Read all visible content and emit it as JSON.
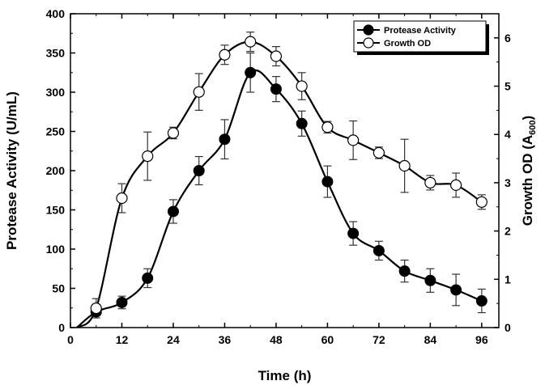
{
  "chart_data": {
    "type": "line",
    "xlabel": "Time (h)",
    "ylabel_left": "Protease Activity (U/mL)",
    "ylabel_right_main": "Growth OD (A",
    "ylabel_right_sub": "600",
    "ylabel_right_close": ")",
    "xlim": [
      0,
      100
    ],
    "xticks": [
      0,
      12,
      24,
      36,
      48,
      60,
      72,
      84,
      96
    ],
    "ylim_left": [
      0,
      400
    ],
    "yticks_left": [
      0,
      50,
      100,
      150,
      200,
      250,
      300,
      350,
      400
    ],
    "ylim_right": [
      0,
      6.5
    ],
    "yticks_right": [
      0,
      1,
      2,
      3,
      4,
      5,
      6
    ],
    "grid": false,
    "legend_position": "top-right",
    "series": [
      {
        "name": "Protease Activity",
        "axis": "left",
        "marker": "filled-circle",
        "x": [
          6,
          12,
          18,
          24,
          30,
          36,
          42,
          48,
          54,
          60,
          66,
          72,
          78,
          84,
          90,
          96
        ],
        "y": [
          20,
          32,
          63,
          148,
          200,
          240,
          325,
          304,
          260,
          186,
          120,
          98,
          72,
          60,
          48,
          34
        ],
        "err": [
          5,
          8,
          12,
          15,
          18,
          25,
          25,
          16,
          16,
          20,
          15,
          12,
          14,
          15,
          20,
          15
        ]
      },
      {
        "name": "Growth OD",
        "axis": "right",
        "marker": "open-circle",
        "x": [
          6,
          12,
          18,
          24,
          30,
          36,
          42,
          48,
          54,
          60,
          66,
          72,
          78,
          84,
          90,
          96
        ],
        "y": [
          0.4,
          2.68,
          3.55,
          4.03,
          4.88,
          5.65,
          5.92,
          5.62,
          5.0,
          4.15,
          3.88,
          3.62,
          3.35,
          3.0,
          2.95,
          2.6
        ],
        "err": [
          0.2,
          0.3,
          0.5,
          0.12,
          0.38,
          0.2,
          0.2,
          0.2,
          0.28,
          0.12,
          0.4,
          0.12,
          0.55,
          0.15,
          0.25,
          0.15
        ]
      }
    ]
  }
}
